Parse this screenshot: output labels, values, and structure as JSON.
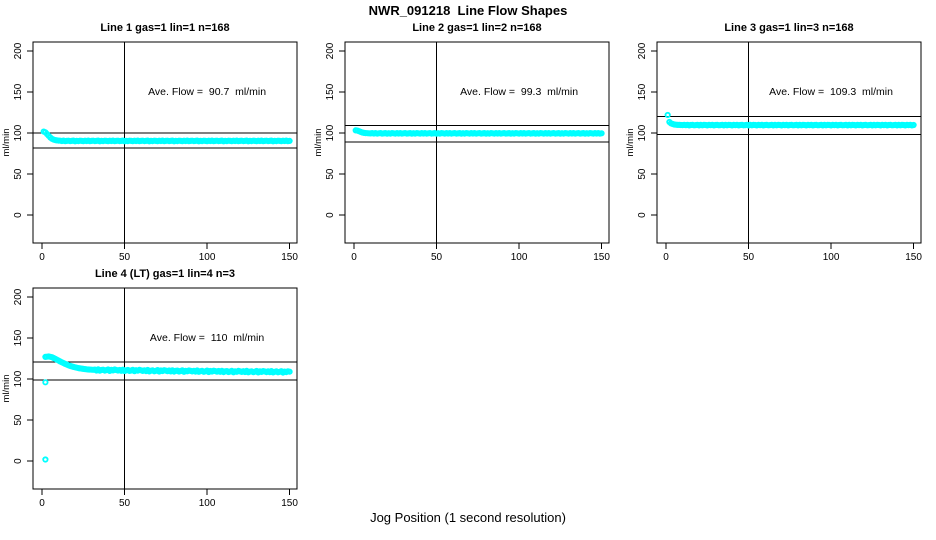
{
  "title": "NWR_091218  Line Flow Shapes",
  "xlabel": "Jog Position (1 second resolution)",
  "background": "#FFFFFF",
  "point_color": "#00FFFF",
  "line_color": "#000000",
  "chart_data": [
    {
      "type": "scatter",
      "title": "Line 1 gas=1 lin=1 n=168",
      "annotation": "Ave. Flow =  90.7  ml/min",
      "avg_flow_ml_min": 90.7,
      "n": 168,
      "ylabel": "ml/min",
      "xlim": [
        -5.5,
        154.5
      ],
      "ylim": [
        -34,
        211
      ],
      "x_ticks": [
        0,
        50,
        100,
        150
      ],
      "y_ticks": [
        0,
        50,
        100,
        150,
        200
      ],
      "vline_x": 50,
      "ref_lines_y": [
        99.8,
        81.6
      ],
      "annotation_xy": [
        100,
        150
      ],
      "series": {
        "x_start": 1,
        "x_step": 1,
        "y": [
          101.8,
          100.9,
          98.9,
          96.7,
          94.6,
          93.0,
          92.0,
          91.4,
          91.0,
          90.8,
          90.7,
          90.3,
          90.8,
          90.1,
          90.5,
          90.7,
          90.2,
          90.4,
          90.8,
          90.0,
          90.6,
          90.2,
          90.7,
          90.5,
          90.1,
          90.7,
          90.3,
          90.8,
          90.1,
          90.5,
          90.7,
          90.2,
          90.4,
          90.8,
          90.0,
          90.6,
          90.2,
          90.7,
          90.5,
          90.1,
          90.7,
          90.3,
          90.8,
          90.1,
          90.5,
          90.7,
          90.2,
          90.4,
          90.8,
          90.0,
          90.6,
          90.2,
          90.7,
          90.5,
          90.1,
          90.7,
          90.3,
          90.8,
          90.1,
          90.5,
          90.7,
          90.2,
          90.4,
          90.8,
          90.0,
          90.6,
          90.2,
          90.7,
          90.5,
          90.1,
          90.7,
          90.3,
          90.8,
          90.1,
          90.5,
          90.7,
          90.2,
          90.4,
          90.8,
          90.0,
          90.6,
          90.2,
          90.7,
          90.5,
          90.1,
          90.7,
          90.3,
          90.8,
          90.1,
          90.5,
          90.7,
          90.2,
          90.4,
          90.8,
          90.0,
          90.6,
          90.2,
          90.7,
          90.5,
          90.1,
          90.7,
          90.3,
          90.8,
          90.1,
          90.5,
          90.7,
          90.2,
          90.4,
          90.8,
          90.0,
          90.6,
          90.2,
          90.7,
          90.5,
          90.1,
          90.7,
          90.3,
          90.8,
          90.1,
          90.5,
          90.7,
          90.2,
          90.4,
          90.8,
          90.0,
          90.6,
          90.2,
          90.7,
          90.5,
          90.1,
          90.7,
          90.3,
          90.8,
          90.1,
          90.5,
          90.7,
          90.2,
          90.4,
          90.8,
          90.0,
          90.6,
          90.2,
          90.7,
          90.5,
          90.1,
          90.7,
          90.3,
          90.8,
          90.1,
          90.5
        ]
      },
      "extra_points": []
    },
    {
      "type": "scatter",
      "title": "Line 2 gas=1 lin=2 n=168",
      "annotation": "Ave. Flow =  99.3  ml/min",
      "avg_flow_ml_min": 99.3,
      "n": 168,
      "ylabel": "ml/min",
      "xlim": [
        -5.5,
        154.5
      ],
      "ylim": [
        -34,
        211
      ],
      "x_ticks": [
        0,
        50,
        100,
        150
      ],
      "y_ticks": [
        0,
        50,
        100,
        150,
        200
      ],
      "vline_x": 50,
      "ref_lines_y": [
        109.2,
        89.4
      ],
      "annotation_xy": [
        100,
        150
      ],
      "series": {
        "x_start": 1,
        "x_step": 1,
        "y": [
          103.2,
          103.0,
          102.3,
          101.4,
          100.7,
          100.2,
          99.9,
          99.8,
          99.7,
          99.6,
          99.9,
          99.5,
          100.0,
          99.3,
          99.7,
          99.9,
          99.4,
          99.6,
          100.0,
          99.2,
          99.8,
          99.4,
          99.9,
          99.7,
          99.3,
          99.9,
          99.5,
          100.0,
          99.3,
          99.7,
          99.9,
          99.4,
          99.6,
          100.0,
          99.2,
          99.8,
          99.4,
          99.9,
          99.7,
          99.3,
          99.9,
          99.5,
          100.0,
          99.3,
          99.7,
          99.9,
          99.4,
          99.6,
          100.0,
          99.2,
          99.8,
          99.4,
          99.9,
          99.7,
          99.3,
          99.9,
          99.5,
          100.0,
          99.3,
          99.7,
          99.9,
          99.4,
          99.6,
          100.0,
          99.2,
          99.8,
          99.4,
          99.9,
          99.7,
          99.3,
          99.9,
          99.5,
          100.0,
          99.3,
          99.7,
          99.9,
          99.4,
          99.6,
          100.0,
          99.2,
          99.8,
          99.4,
          99.9,
          99.7,
          99.3,
          99.9,
          99.5,
          100.0,
          99.3,
          99.7,
          99.9,
          99.4,
          99.6,
          100.0,
          99.2,
          99.8,
          99.4,
          99.9,
          99.7,
          99.3,
          99.9,
          99.5,
          100.0,
          99.3,
          99.7,
          99.9,
          99.4,
          99.6,
          100.0,
          99.2,
          99.8,
          99.4,
          99.9,
          99.7,
          99.3,
          99.9,
          99.5,
          100.0,
          99.3,
          99.7,
          99.9,
          99.4,
          99.6,
          100.0,
          99.2,
          99.8,
          99.4,
          99.9,
          99.7,
          99.3,
          99.9,
          99.5,
          100.0,
          99.3,
          99.7,
          99.9,
          99.4,
          99.6,
          100.0,
          99.2,
          99.8,
          99.4,
          99.9,
          99.7,
          99.3,
          99.9,
          99.5,
          100.0,
          99.3,
          99.7
        ]
      },
      "extra_points": []
    },
    {
      "type": "scatter",
      "title": "Line 3 gas=1 lin=3 n=168",
      "annotation": "Ave. Flow =  109.3  ml/min",
      "avg_flow_ml_min": 109.3,
      "n": 168,
      "ylabel": "ml/min",
      "xlim": [
        -5.5,
        154.5
      ],
      "ylim": [
        -34,
        211
      ],
      "x_ticks": [
        0,
        50,
        100,
        150
      ],
      "y_ticks": [
        0,
        50,
        100,
        150,
        200
      ],
      "vline_x": 50,
      "ref_lines_y": [
        120.2,
        98.4
      ],
      "annotation_xy": [
        100,
        150
      ],
      "series": {
        "x_start": 1,
        "x_step": 1,
        "y": [
          122.0,
          113.5,
          111.8,
          111.0,
          110.5,
          110.2,
          110.0,
          109.9,
          109.8,
          109.7,
          110.0,
          109.6,
          110.1,
          109.4,
          109.8,
          110.0,
          109.5,
          109.7,
          110.1,
          109.3,
          109.9,
          109.5,
          110.0,
          109.8,
          109.4,
          110.0,
          109.6,
          110.1,
          109.4,
          109.8,
          110.0,
          109.5,
          109.7,
          110.1,
          109.3,
          109.9,
          109.5,
          110.0,
          109.8,
          109.4,
          110.0,
          109.6,
          110.1,
          109.4,
          109.8,
          110.0,
          109.5,
          109.7,
          110.1,
          109.3,
          109.9,
          109.5,
          110.0,
          109.8,
          109.4,
          110.0,
          109.6,
          110.1,
          109.4,
          109.8,
          110.0,
          109.5,
          109.7,
          110.1,
          109.3,
          109.9,
          109.5,
          110.0,
          109.8,
          109.4,
          110.0,
          109.6,
          110.1,
          109.4,
          109.8,
          110.0,
          109.5,
          109.7,
          110.1,
          109.3,
          109.9,
          109.5,
          110.0,
          109.8,
          109.4,
          110.0,
          109.6,
          110.1,
          109.4,
          109.8,
          110.0,
          109.5,
          109.7,
          110.1,
          109.3,
          109.9,
          109.5,
          110.0,
          109.8,
          109.4,
          110.0,
          109.6,
          110.1,
          109.4,
          109.8,
          110.0,
          109.5,
          109.7,
          110.1,
          109.3,
          109.9,
          109.5,
          110.0,
          109.8,
          109.4,
          110.0,
          109.6,
          110.1,
          109.4,
          109.8,
          110.0,
          109.5,
          109.7,
          110.1,
          109.3,
          109.9,
          109.5,
          110.0,
          109.8,
          109.4,
          110.0,
          109.6,
          110.1,
          109.4,
          109.8,
          110.0,
          109.5,
          109.7,
          110.1,
          109.3,
          109.9,
          109.5,
          110.0,
          109.8,
          109.4,
          110.0,
          109.6,
          110.1,
          109.4,
          109.8
        ]
      },
      "extra_points": []
    },
    {
      "type": "scatter",
      "title": "Line 4 (LT) gas=1 lin=4 n=3",
      "annotation": "Ave. Flow =  110  ml/min",
      "avg_flow_ml_min": 110,
      "n": 3,
      "ylabel": "ml/min",
      "xlim": [
        -5.5,
        154.5
      ],
      "ylim": [
        -34,
        211
      ],
      "x_ticks": [
        0,
        50,
        100,
        150
      ],
      "y_ticks": [
        0,
        50,
        100,
        150,
        200
      ],
      "vline_x": 50,
      "ref_lines_y": [
        121.0,
        99.0
      ],
      "annotation_xy": [
        100,
        150
      ],
      "series": {
        "x_start": 2,
        "x_step": 1,
        "y": [
          127.0,
          127.3,
          127.5,
          127.2,
          126.6,
          125.7,
          124.7,
          123.6,
          122.5,
          121.4,
          120.4,
          119.4,
          118.5,
          117.6,
          116.8,
          116.1,
          115.4,
          114.8,
          114.3,
          113.8,
          113.4,
          113.0,
          112.7,
          112.4,
          112.1,
          111.9,
          111.7,
          111.5,
          111.4,
          111.3,
          111.5,
          110.5,
          111.8,
          110.2,
          111.0,
          111.4,
          110.3,
          110.9,
          111.7,
          110.0,
          111.2,
          110.6,
          111.6,
          111.1,
          110.4,
          111.1,
          110.1,
          111.4,
          109.8,
          110.6,
          111.0,
          109.9,
          110.5,
          111.3,
          109.6,
          110.8,
          110.2,
          111.2,
          110.7,
          110.0,
          110.7,
          109.7,
          111.0,
          109.4,
          110.2,
          110.6,
          109.5,
          110.1,
          110.9,
          109.2,
          110.4,
          109.8,
          110.8,
          110.3,
          109.6,
          110.4,
          109.4,
          110.7,
          109.1,
          109.9,
          110.3,
          109.2,
          109.8,
          110.6,
          108.9,
          110.1,
          109.5,
          110.5,
          110.0,
          109.3,
          110.1,
          109.1,
          110.4,
          108.8,
          109.6,
          110.0,
          108.9,
          109.5,
          110.3,
          108.6,
          109.8,
          109.2,
          110.2,
          109.7,
          109.0,
          109.8,
          108.8,
          110.1,
          108.5,
          109.3,
          109.7,
          108.6,
          109.2,
          110.0,
          108.3,
          109.5,
          108.9,
          109.9,
          109.4,
          108.7,
          109.6,
          108.6,
          109.9,
          108.3,
          109.1,
          109.5,
          108.4,
          109.0,
          109.8,
          108.1,
          109.3,
          108.7,
          109.7,
          109.2,
          108.5,
          109.4,
          108.4,
          109.7,
          108.1,
          108.9,
          109.3,
          108.2,
          108.8,
          109.6,
          107.9,
          109.1,
          108.5,
          109.5,
          109.0
        ]
      },
      "extra_points": [
        [
          2,
          2.0
        ],
        [
          2,
          96.0
        ]
      ]
    }
  ]
}
